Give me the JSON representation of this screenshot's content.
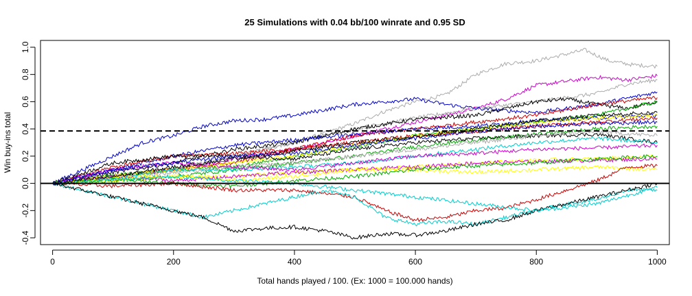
{
  "chart_data": {
    "type": "line",
    "title": "25 Simulations with 0.04 bb/100 winrate and 0.95 SD",
    "xlabel": "Total hands played / 100. (Ex: 1000 = 100.000 hands)",
    "ylabel": "Win buy-ins total",
    "xlim": [
      -20,
      1020
    ],
    "ylim": [
      -0.45,
      1.05
    ],
    "x_ticks": [
      "0",
      "200",
      "400",
      "600",
      "800",
      "1000"
    ],
    "y_ticks": [
      "-0.4",
      "-0.2",
      "0.0",
      "0.2",
      "0.4",
      "0.6",
      "0.8",
      "1.0"
    ],
    "grid": false,
    "legend": "none",
    "reference_lines": [
      {
        "y": 0.0,
        "style": "solid",
        "color": "#000000"
      },
      {
        "y": 0.385,
        "style": "dashed",
        "color": "#000000"
      }
    ],
    "series": [
      {
        "color": "#aaaaaa",
        "x": [
          0,
          100,
          200,
          300,
          400,
          500,
          550,
          600,
          650,
          700,
          750,
          800,
          850,
          880,
          920,
          960,
          1000
        ],
        "y": [
          0,
          0.05,
          0.1,
          0.2,
          0.3,
          0.44,
          0.53,
          0.6,
          0.65,
          0.8,
          0.88,
          0.9,
          0.95,
          0.98,
          0.9,
          0.87,
          0.86
        ]
      },
      {
        "color": "#cc00cc",
        "x": [
          0,
          100,
          200,
          300,
          400,
          500,
          600,
          700,
          750,
          800,
          850,
          900,
          950,
          1000
        ],
        "y": [
          0,
          0.05,
          0.1,
          0.18,
          0.25,
          0.35,
          0.45,
          0.55,
          0.62,
          0.72,
          0.75,
          0.78,
          0.76,
          0.79
        ]
      },
      {
        "color": "#aaaaaa",
        "x": [
          0,
          100,
          200,
          300,
          400,
          500,
          600,
          700,
          800,
          900,
          950,
          1000
        ],
        "y": [
          0,
          0.05,
          0.1,
          0.2,
          0.3,
          0.4,
          0.48,
          0.55,
          0.6,
          0.66,
          0.73,
          0.76
        ]
      },
      {
        "color": "#0000cc",
        "x": [
          0,
          50,
          100,
          150,
          200,
          250,
          300,
          350,
          400,
          450,
          500,
          550,
          600,
          650,
          700,
          800,
          900,
          1000
        ],
        "y": [
          0,
          0.1,
          0.2,
          0.3,
          0.35,
          0.42,
          0.46,
          0.47,
          0.5,
          0.54,
          0.58,
          0.6,
          0.62,
          0.58,
          0.55,
          0.52,
          0.58,
          0.67
        ]
      },
      {
        "color": "#000000",
        "x": [
          0,
          100,
          200,
          300,
          400,
          500,
          600,
          700,
          750,
          800,
          850,
          900,
          950,
          1000
        ],
        "y": [
          0,
          0.08,
          0.15,
          0.25,
          0.3,
          0.4,
          0.47,
          0.5,
          0.55,
          0.6,
          0.62,
          0.58,
          0.55,
          0.6
        ]
      },
      {
        "color": "#cc0000",
        "x": [
          0,
          100,
          200,
          300,
          400,
          500,
          600,
          700,
          800,
          900,
          1000
        ],
        "y": [
          0,
          0.05,
          0.1,
          0.15,
          0.25,
          0.35,
          0.4,
          0.45,
          0.5,
          0.58,
          0.63
        ]
      },
      {
        "color": "#00aa00",
        "x": [
          0,
          100,
          200,
          300,
          400,
          500,
          600,
          700,
          800,
          900,
          1000
        ],
        "y": [
          0,
          0.06,
          0.1,
          0.12,
          0.2,
          0.27,
          0.35,
          0.4,
          0.45,
          0.5,
          0.6
        ]
      },
      {
        "color": "#0000cc",
        "x": [
          0,
          100,
          200,
          300,
          400,
          500,
          600,
          700,
          800,
          900,
          1000
        ],
        "y": [
          0,
          0.1,
          0.2,
          0.28,
          0.32,
          0.36,
          0.4,
          0.42,
          0.46,
          0.48,
          0.5
        ]
      },
      {
        "color": "#ffff00",
        "x": [
          0,
          100,
          200,
          300,
          400,
          500,
          600,
          700,
          800,
          900,
          1000
        ],
        "y": [
          0,
          0.05,
          0.1,
          0.15,
          0.2,
          0.28,
          0.35,
          0.4,
          0.45,
          0.48,
          0.5
        ]
      },
      {
        "color": "#cc0000",
        "x": [
          0,
          100,
          200,
          300,
          400,
          500,
          600,
          700,
          800,
          900,
          1000
        ],
        "y": [
          0,
          0.12,
          0.2,
          0.22,
          0.25,
          0.3,
          0.35,
          0.38,
          0.42,
          0.45,
          0.48
        ]
      },
      {
        "color": "#00aa00",
        "x": [
          0,
          100,
          200,
          300,
          400,
          500,
          600,
          700,
          800,
          900,
          1000
        ],
        "y": [
          0,
          0.02,
          0.05,
          0.1,
          0.15,
          0.2,
          0.27,
          0.32,
          0.36,
          0.4,
          0.42
        ]
      },
      {
        "color": "#000000",
        "x": [
          0,
          100,
          200,
          300,
          400,
          500,
          600,
          700,
          800,
          900,
          1000
        ],
        "y": [
          0,
          0.15,
          0.2,
          0.2,
          0.18,
          0.25,
          0.3,
          0.33,
          0.35,
          0.36,
          0.3
        ]
      },
      {
        "color": "#aaaaaa",
        "x": [
          0,
          100,
          200,
          300,
          400,
          500,
          600,
          700,
          800,
          900,
          1000
        ],
        "y": [
          0,
          0.03,
          0.08,
          0.12,
          0.15,
          0.2,
          0.25,
          0.3,
          0.35,
          0.38,
          0.35
        ]
      },
      {
        "color": "#00cccc",
        "x": [
          0,
          100,
          200,
          300,
          400,
          500,
          600,
          700,
          800,
          900,
          1000
        ],
        "y": [
          0,
          0.05,
          0.1,
          0.1,
          0.12,
          0.15,
          0.2,
          0.25,
          0.3,
          0.33,
          0.3
        ]
      },
      {
        "color": "#cc00cc",
        "x": [
          0,
          100,
          200,
          300,
          400,
          500,
          600,
          700,
          800,
          900,
          1000
        ],
        "y": [
          0,
          0.1,
          0.15,
          0.12,
          0.1,
          0.15,
          0.2,
          0.22,
          0.25,
          0.26,
          0.28
        ]
      },
      {
        "color": "#ffff00",
        "x": [
          0,
          100,
          200,
          300,
          400,
          500,
          600,
          700,
          800,
          900,
          1000
        ],
        "y": [
          0,
          0.02,
          0.05,
          0.05,
          0.08,
          0.1,
          0.12,
          0.15,
          0.17,
          0.18,
          0.2
        ]
      },
      {
        "color": "#cc00cc",
        "x": [
          0,
          100,
          200,
          300,
          400,
          500,
          600,
          700,
          800,
          900,
          1000
        ],
        "y": [
          0,
          0.05,
          0.02,
          0.05,
          0.08,
          0.1,
          0.12,
          0.15,
          0.16,
          0.17,
          0.18
        ]
      },
      {
        "color": "#ffff00",
        "x": [
          0,
          100,
          200,
          300,
          400,
          500,
          600,
          700,
          800,
          900,
          1000
        ],
        "y": [
          0,
          0.05,
          0.05,
          0.02,
          0.05,
          0.1,
          0.1,
          0.08,
          0.1,
          0.12,
          0.1
        ]
      },
      {
        "color": "#00aa00",
        "x": [
          0,
          100,
          200,
          300,
          400,
          500,
          600,
          700,
          800,
          900,
          1000
        ],
        "y": [
          0,
          0.03,
          0.0,
          -0.02,
          0.02,
          0.05,
          0.1,
          0.13,
          0.15,
          0.18,
          0.2
        ]
      },
      {
        "color": "#cc0000",
        "x": [
          0,
          100,
          200,
          300,
          400,
          500,
          550,
          600,
          650,
          700,
          750,
          800,
          850,
          900,
          950,
          1000
        ],
        "y": [
          0,
          -0.02,
          0.0,
          -0.05,
          -0.05,
          -0.1,
          -0.2,
          -0.27,
          -0.25,
          -0.2,
          -0.18,
          -0.12,
          -0.05,
          0.02,
          0.12,
          0.13
        ]
      },
      {
        "color": "#00cccc",
        "x": [
          0,
          50,
          100,
          150,
          200,
          250,
          300,
          350,
          400,
          450,
          500,
          550,
          600,
          650,
          700,
          750,
          800,
          850,
          900,
          950,
          1000
        ],
        "y": [
          0,
          -0.05,
          -0.1,
          -0.15,
          -0.2,
          -0.25,
          -0.2,
          -0.15,
          -0.1,
          -0.05,
          -0.1,
          -0.25,
          -0.3,
          -0.28,
          -0.3,
          -0.25,
          -0.2,
          -0.15,
          -0.12,
          -0.05,
          -0.05
        ]
      },
      {
        "color": "#000000",
        "x": [
          0,
          50,
          100,
          150,
          200,
          250,
          300,
          350,
          400,
          450,
          500,
          550,
          600,
          650,
          700,
          750,
          800,
          850,
          900,
          950,
          1000
        ],
        "y": [
          0,
          -0.05,
          -0.1,
          -0.15,
          -0.2,
          -0.25,
          -0.35,
          -0.33,
          -0.32,
          -0.35,
          -0.4,
          -0.37,
          -0.38,
          -0.35,
          -0.3,
          -0.27,
          -0.2,
          -0.15,
          -0.1,
          -0.05,
          0.0
        ]
      },
      {
        "color": "#00cccc",
        "x": [
          0,
          100,
          200,
          300,
          400,
          500,
          600,
          700,
          800,
          900,
          1000
        ],
        "y": [
          0,
          0.03,
          0.05,
          0.02,
          0.0,
          -0.05,
          -0.1,
          -0.15,
          -0.2,
          -0.15,
          -0.03
        ]
      },
      {
        "color": "#0000cc",
        "x": [
          0,
          100,
          200,
          300,
          400,
          500,
          600,
          700,
          800,
          900,
          1000
        ],
        "y": [
          0,
          0.1,
          0.15,
          0.2,
          0.22,
          0.28,
          0.33,
          0.38,
          0.42,
          0.44,
          0.45
        ]
      },
      {
        "color": "#000000",
        "x": [
          0,
          100,
          200,
          300,
          400,
          500,
          600,
          700,
          800,
          900,
          1000
        ],
        "y": [
          0,
          0.05,
          0.12,
          0.18,
          0.24,
          0.3,
          0.34,
          0.4,
          0.46,
          0.5,
          0.52
        ]
      }
    ]
  }
}
